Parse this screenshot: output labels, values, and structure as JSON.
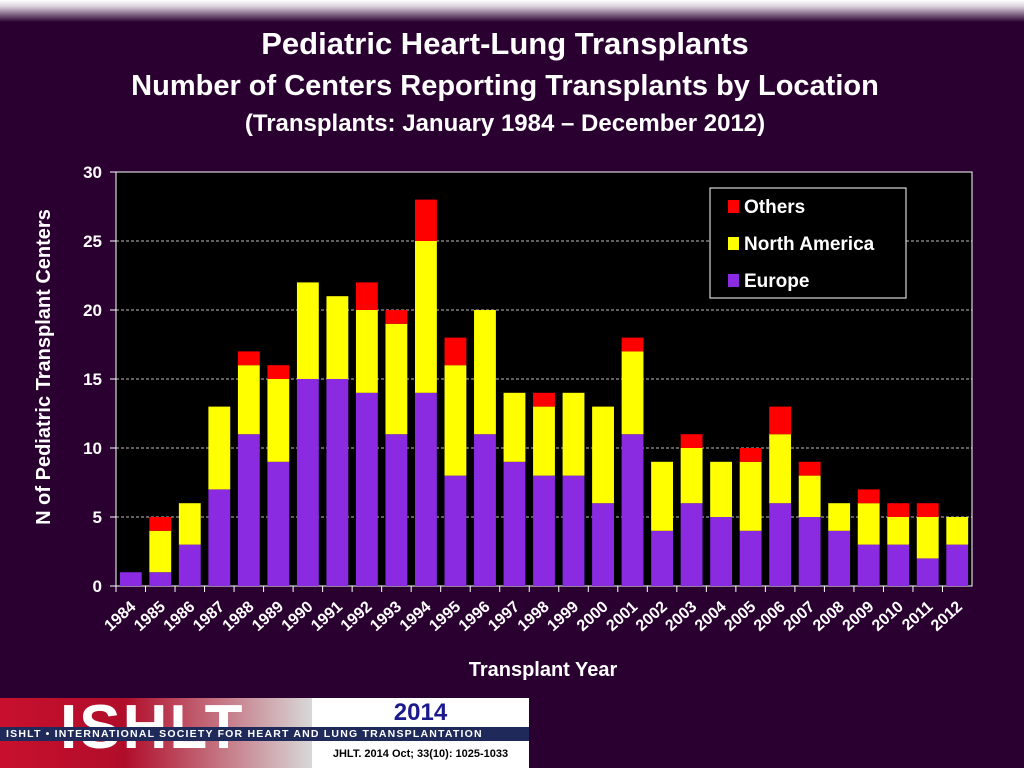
{
  "titles": {
    "main": "Pediatric Heart-Lung Transplants",
    "sub": "Number of Centers Reporting Transplants by Location",
    "range": "(Transplants: January 1984 – December 2012)"
  },
  "footer": {
    "logo": "ISHLT",
    "org": "ISHLT • INTERNATIONAL SOCIETY FOR HEART AND LUNG TRANSPLANTATION",
    "year": "2014",
    "citation": "JHLT. 2014 Oct; 33(10): 1025-1033"
  },
  "chart_data": {
    "type": "bar",
    "stacked": true,
    "xlabel": "Transplant Year",
    "ylabel": "N of Pediatric Transplant Centers",
    "ylim": [
      0,
      30
    ],
    "yticks": [
      0,
      5,
      10,
      15,
      20,
      25,
      30
    ],
    "grid": true,
    "legend": "top-right",
    "categories": [
      "1984",
      "1985",
      "1986",
      "1987",
      "1988",
      "1989",
      "1990",
      "1991",
      "1992",
      "1993",
      "1994",
      "1995",
      "1996",
      "1997",
      "1998",
      "1999",
      "2000",
      "2001",
      "2002",
      "2003",
      "2004",
      "2005",
      "2006",
      "2007",
      "2008",
      "2009",
      "2010",
      "2011",
      "2012"
    ],
    "series": [
      {
        "name": "Europe",
        "color": "#8a2be2",
        "values": [
          1,
          1,
          3,
          7,
          11,
          9,
          15,
          15,
          14,
          11,
          14,
          8,
          11,
          9,
          8,
          8,
          6,
          11,
          4,
          6,
          5,
          4,
          6,
          5,
          4,
          3,
          3,
          2,
          3
        ]
      },
      {
        "name": "North America",
        "color": "#ffff00",
        "values": [
          0,
          3,
          3,
          6,
          5,
          6,
          7,
          6,
          6,
          8,
          11,
          8,
          9,
          5,
          5,
          6,
          7,
          6,
          5,
          4,
          4,
          5,
          5,
          3,
          2,
          3,
          2,
          3,
          2
        ]
      },
      {
        "name": "Others",
        "color": "#ff0000",
        "values": [
          0,
          1,
          0,
          0,
          1,
          1,
          0,
          0,
          2,
          1,
          3,
          2,
          0,
          0,
          1,
          0,
          0,
          1,
          0,
          1,
          0,
          1,
          2,
          1,
          0,
          1,
          1,
          1,
          0
        ]
      }
    ],
    "legend_order": [
      "Others",
      "North America",
      "Europe"
    ]
  }
}
